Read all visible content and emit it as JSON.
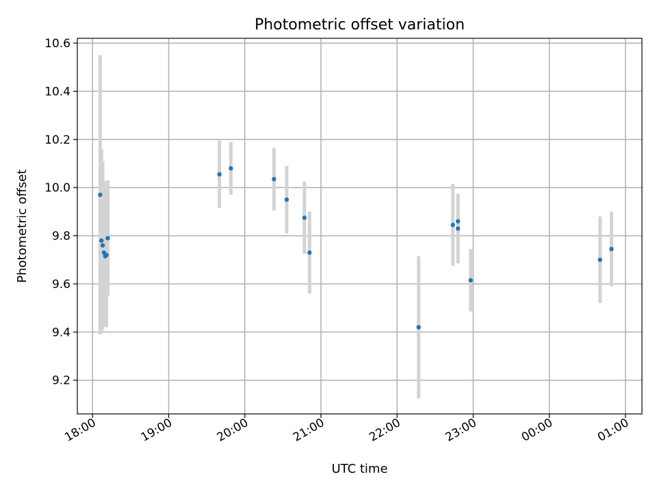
{
  "chart_data": {
    "type": "scatter",
    "title": "Photometric offset variation",
    "xlabel": "UTC time",
    "ylabel": "Photometric offset",
    "x_ticks": [
      "18:00",
      "19:00",
      "20:00",
      "21:00",
      "22:00",
      "23:00",
      "00:00",
      "01:00"
    ],
    "y_ticks": [
      "9.2",
      "9.4",
      "9.6",
      "9.8",
      "10.0",
      "10.2",
      "10.4",
      "10.6"
    ],
    "xlim": [
      "17:48",
      "01:13"
    ],
    "ylim": [
      9.06,
      10.62
    ],
    "grid": true,
    "marker_color": "#1f77b4",
    "errorbar_color": "#d3d3d3",
    "series": [
      {
        "points": [
          {
            "x": "18:06",
            "y": 9.97,
            "err": 0.58
          },
          {
            "x": "18:07",
            "y": 9.78,
            "err": 0.38
          },
          {
            "x": "18:08",
            "y": 9.76,
            "err": 0.35
          },
          {
            "x": "18:09",
            "y": 9.73,
            "err": 0.3
          },
          {
            "x": "18:10",
            "y": 9.715,
            "err": 0.29
          },
          {
            "x": "18:11",
            "y": 9.72,
            "err": 0.3
          },
          {
            "x": "18:12",
            "y": 9.79,
            "err": 0.24
          },
          {
            "x": "19:40",
            "y": 10.055,
            "err": 0.14
          },
          {
            "x": "19:49",
            "y": 10.08,
            "err": 0.11
          },
          {
            "x": "20:23",
            "y": 10.035,
            "err": 0.13
          },
          {
            "x": "20:33",
            "y": 9.95,
            "err": 0.14
          },
          {
            "x": "20:47",
            "y": 9.875,
            "err": 0.15
          },
          {
            "x": "20:51",
            "y": 9.73,
            "err": 0.17
          },
          {
            "x": "22:17",
            "y": 9.42,
            "err": 0.295
          },
          {
            "x": "22:44",
            "y": 9.845,
            "err": 0.17
          },
          {
            "x": "22:48",
            "y": 9.86,
            "err": 0.115
          },
          {
            "x": "22:48",
            "y": 9.83,
            "err": 0.145
          },
          {
            "x": "22:58",
            "y": 9.615,
            "err": 0.13
          },
          {
            "x": "00:40",
            "y": 9.7,
            "err": 0.18
          },
          {
            "x": "00:49",
            "y": 9.745,
            "err": 0.155
          }
        ]
      }
    ]
  }
}
